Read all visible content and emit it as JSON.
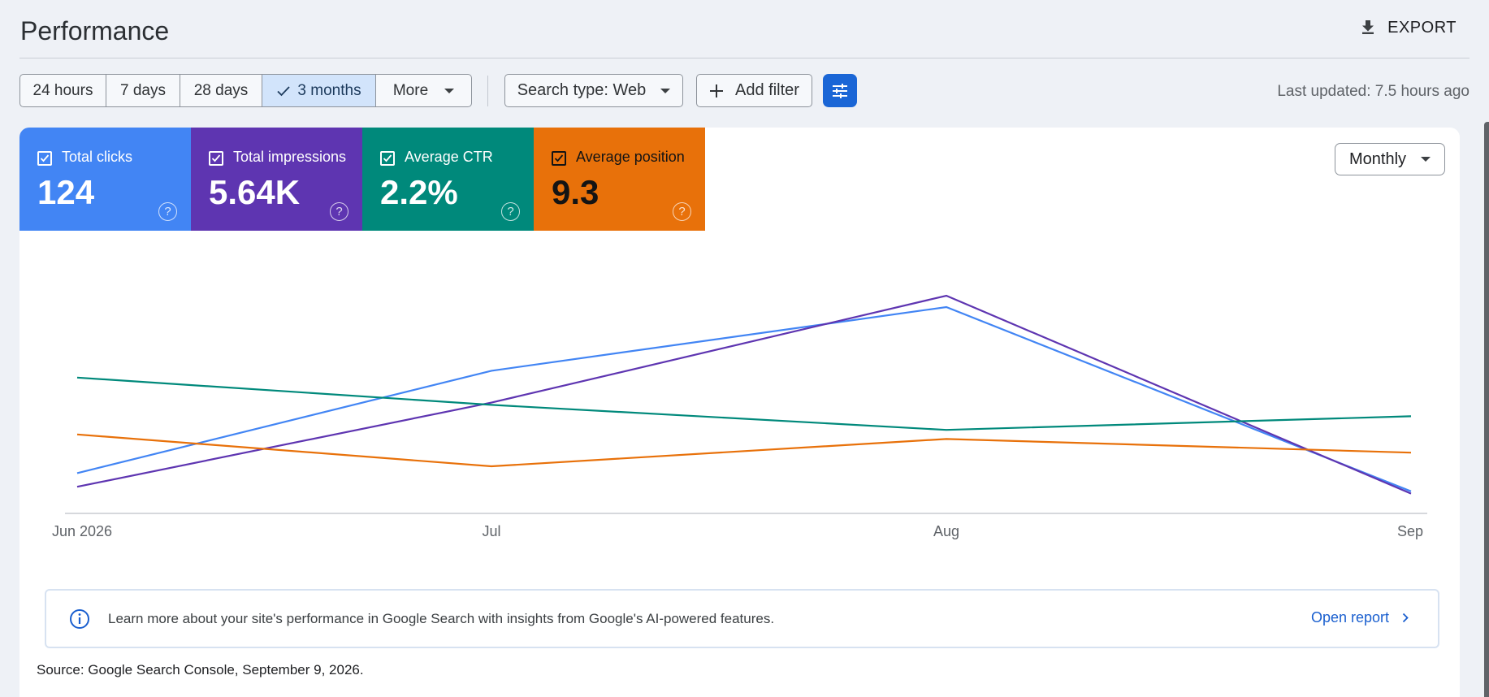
{
  "header": {
    "title": "Performance",
    "export_label": "EXPORT"
  },
  "toolbar": {
    "date_ranges": [
      "24 hours",
      "7 days",
      "28 days",
      "3 months",
      "More"
    ],
    "selected_range": "3 months",
    "search_type_label": "Search type: Web",
    "add_filter_label": "Add filter",
    "last_updated": "Last updated: 7.5 hours ago"
  },
  "metrics": [
    {
      "label": "Total clicks",
      "value": "124",
      "color": "#4285f4"
    },
    {
      "label": "Total impressions",
      "value": "5.64K",
      "color": "#5e35b1"
    },
    {
      "label": "Average CTR",
      "value": "2.2%",
      "color": "#00897b"
    },
    {
      "label": "Average position",
      "value": "9.3",
      "color": "#e8710a"
    }
  ],
  "granularity": {
    "selected": "Monthly"
  },
  "chart_data": {
    "type": "line",
    "x": [
      "Jun 2026",
      "Jul",
      "Aug",
      "Sep"
    ],
    "y_axis_labels": "none shown",
    "grid": false,
    "legend": "none",
    "series": [
      {
        "name": "Total clicks",
        "color": "#4285f4",
        "relative_height": [
          0.17,
          0.62,
          0.9,
          0.09
        ]
      },
      {
        "name": "Total impressions",
        "color": "#5e35b1",
        "relative_height": [
          0.11,
          0.48,
          0.95,
          0.08
        ]
      },
      {
        "name": "Average CTR",
        "color": "#00897b",
        "relative_height": [
          0.59,
          0.47,
          0.36,
          0.42
        ]
      },
      {
        "name": "Average position",
        "color": "#e8710a",
        "relative_height": [
          0.34,
          0.2,
          0.32,
          0.26
        ]
      }
    ]
  },
  "banner": {
    "text": "Learn more about your site's performance in Google Search with insights from Google's AI-powered features.",
    "link_label": "Open report"
  },
  "footer": {
    "source": "Source: Google Search Console, September 9, 2026."
  }
}
